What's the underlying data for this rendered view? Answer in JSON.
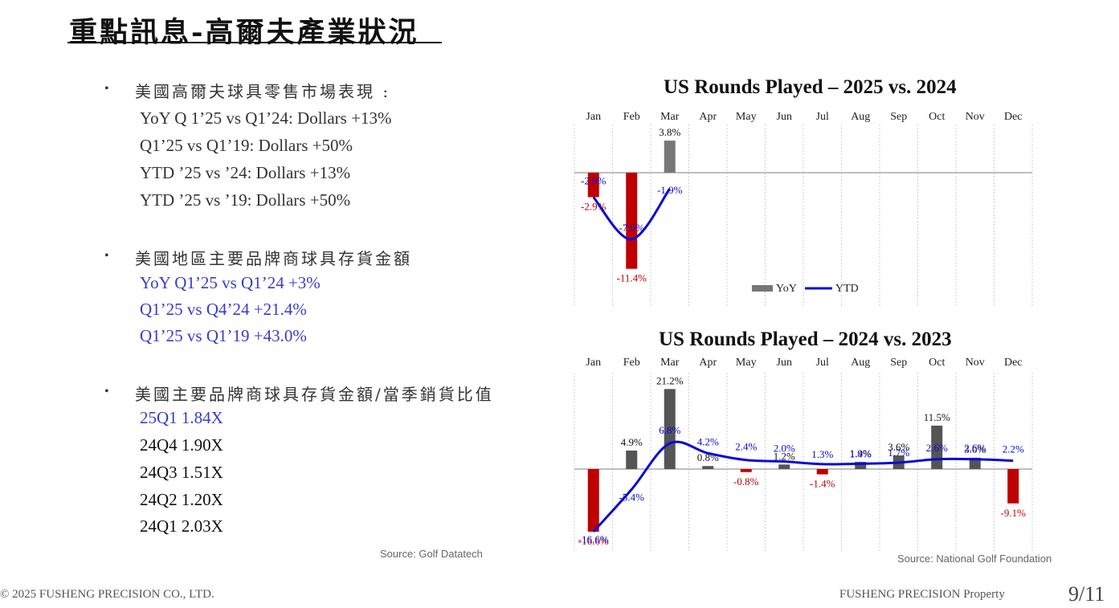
{
  "page_title": "重點訊息-高爾夫產業狀況",
  "left": {
    "sections": [
      {
        "heading": "美國高爾夫球具零售市場表現 :",
        "lines": [
          "YoY Q 1’25 vs Q1’24: Dollars  +13%",
          "Q1’25 vs Q1’19: Dollars  +50%",
          "YTD ’25 vs ’24: Dollars   +13%",
          "YTD ’25 vs ’19: Dollars   +50%"
        ]
      },
      {
        "heading": "美國地區主要品牌商球具存貨金額",
        "lines": [
          "YoY Q1’25 vs Q1’24   +3%",
          "Q1’25 vs Q4’24  +21.4%",
          "Q1’25 vs Q1’19   +43.0%"
        ]
      },
      {
        "heading": "美國主要品牌商球具存貨金額/當季銷貨比值",
        "lines": [
          "25Q1   1.84X",
          "24Q4   1.90X",
          "24Q3   1.51X",
          "24Q2   1.20X",
          "24Q1   2.03X"
        ]
      }
    ],
    "source": "Source: Golf Datatech"
  },
  "chart_data": [
    {
      "type": "bar",
      "title": "US Rounds Played – 2025 vs. 2024",
      "categories": [
        "Jan",
        "Feb",
        "Mar",
        "Apr",
        "May",
        "Jun",
        "Jul",
        "Aug",
        "Sep",
        "Oct",
        "Nov",
        "Dec"
      ],
      "series": [
        {
          "name": "YoY",
          "type": "bar",
          "values": [
            -2.9,
            -11.4,
            3.8,
            null,
            null,
            null,
            null,
            null,
            null,
            null,
            null,
            null
          ],
          "labels": [
            "-2.9%",
            "-11.4%",
            "3.8%",
            "",
            "",
            "",
            "",
            "",
            "",
            "",
            "",
            ""
          ]
        },
        {
          "name": "YTD",
          "type": "line",
          "values": [
            -2.9,
            -7.9,
            -1.9,
            null,
            null,
            null,
            null,
            null,
            null,
            null,
            null,
            null
          ],
          "labels": [
            "-2.9%",
            "-7.9%",
            "-1.9%",
            "",
            "",
            "",
            "",
            "",
            "",
            "",
            "",
            ""
          ]
        }
      ],
      "legend": "bottom",
      "colors": {
        "positive": "#777777",
        "negative": "#c00000",
        "line": "#0a0ad8"
      }
    },
    {
      "type": "bar",
      "title": "US Rounds Played – 2024 vs. 2023",
      "categories": [
        "Jan",
        "Feb",
        "Mar",
        "Apr",
        "May",
        "Jun",
        "Jul",
        "Aug",
        "Sep",
        "Oct",
        "Nov",
        "Dec"
      ],
      "series": [
        {
          "name": "YoY",
          "type": "bar",
          "values": [
            -16.6,
            4.9,
            21.2,
            0.8,
            -0.8,
            1.2,
            -1.4,
            1.9,
            3.6,
            11.5,
            3.0,
            -9.1
          ],
          "labels": [
            "-16.6%",
            "4.9%",
            "21.2%",
            "0.8%",
            "-0.8%",
            "1.2%",
            "-1.4%",
            "1.9%",
            "3.6%",
            "11.5%",
            "3.0%",
            "-9.1%"
          ]
        },
        {
          "name": "YTD",
          "type": "line",
          "values": [
            -16.6,
            -5.4,
            6.8,
            4.2,
            2.4,
            2.0,
            1.3,
            1.4,
            1.7,
            2.6,
            2.6,
            2.2
          ],
          "labels": [
            "-16.6%",
            "-5.4%",
            "6.8%",
            "4.2%",
            "2.4%",
            "2.0%",
            "1.3%",
            "1.4%",
            "1.7%",
            "2.6%",
            "2.6%",
            "2.2%"
          ]
        }
      ],
      "colors": {
        "positive": "#555555",
        "negative": "#c00000",
        "line": "#0a0ad8"
      }
    }
  ],
  "right_source": "Source: National Golf Foundation",
  "footer": {
    "left": "© 2025 FUSHENG PRECISION CO., LTD.",
    "right": "FUSHENG PRECISION Property",
    "page": "9/11"
  }
}
